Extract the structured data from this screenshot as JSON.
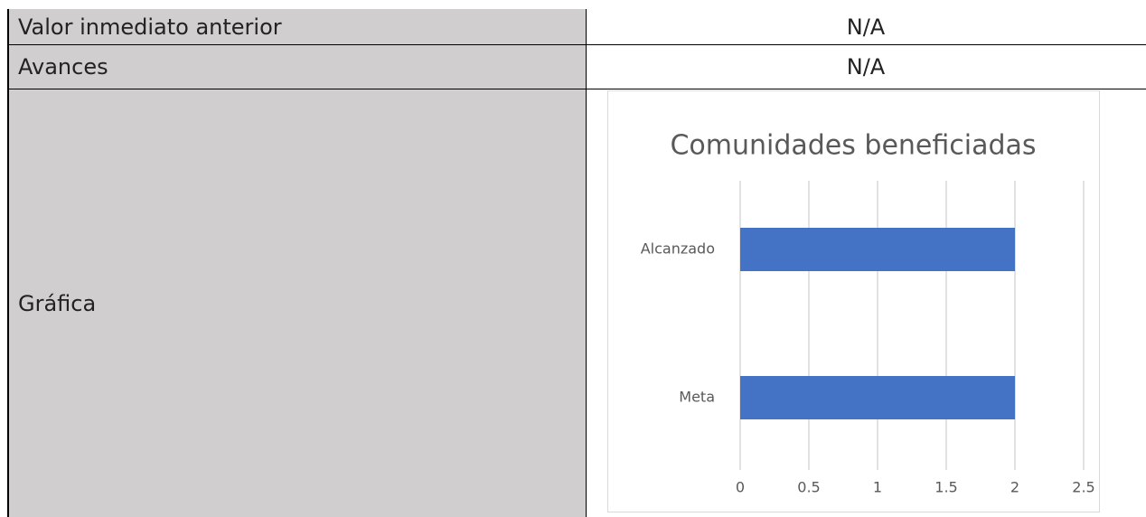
{
  "table": {
    "rows": [
      [
        "Valor inmediato anterior",
        "N/A"
      ],
      [
        "Avances",
        "N/A"
      ],
      [
        "Gráfica"
      ]
    ]
  },
  "chart_data": {
    "type": "hbar",
    "title": "Comunidades beneficiadas",
    "categories": [
      "Alcanzado",
      "Meta"
    ],
    "values": [
      2,
      2
    ],
    "color": "#4472c4",
    "xlim": [
      0,
      2.5
    ],
    "xticks": [
      0,
      0.5,
      1,
      1.5,
      2,
      2.5
    ],
    "grid": true
  }
}
